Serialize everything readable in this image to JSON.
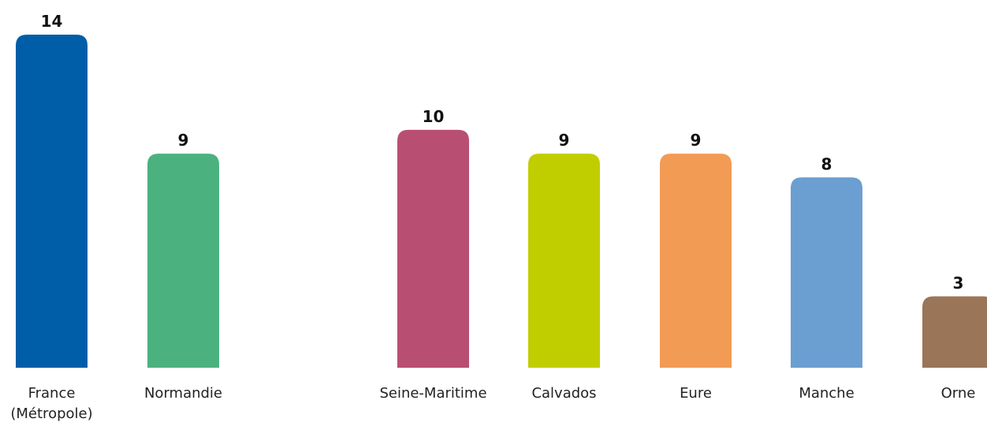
{
  "chart_data": {
    "type": "bar",
    "categories": [
      "France\n(Métropole)",
      "Normandie",
      "Seine-Maritime",
      "Calvados",
      "Eure",
      "Manche",
      "Orne"
    ],
    "values": [
      14,
      9,
      10,
      9,
      9,
      8,
      3
    ],
    "colors": [
      "#005ea8",
      "#4bb27f",
      "#b94e73",
      "#c0ce00",
      "#f29b55",
      "#6b9fd1",
      "#9a7558"
    ],
    "ylim": [
      0,
      14
    ],
    "title": "",
    "xlabel": "",
    "ylabel": "",
    "grid": false,
    "legend": "none",
    "data_labels": true
  }
}
